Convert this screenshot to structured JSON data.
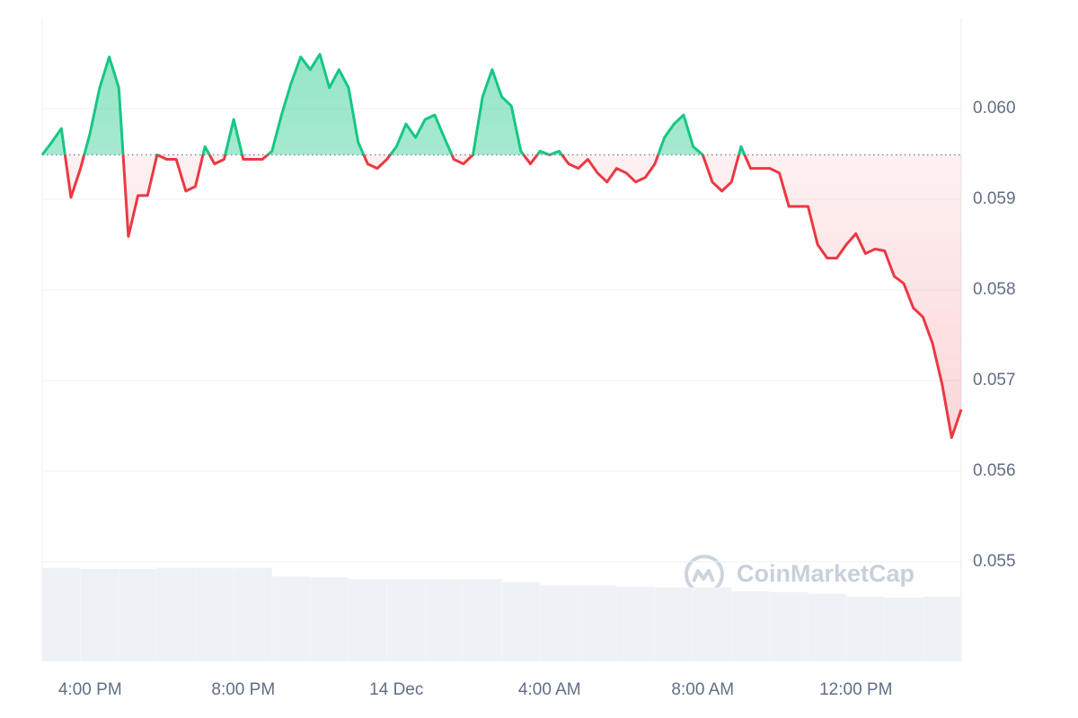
{
  "chart_data": {
    "type": "line",
    "categories": [
      null,
      null,
      null,
      null,
      null,
      "4:00 PM",
      null,
      null,
      null,
      null,
      null,
      null,
      null,
      null,
      null,
      null,
      null,
      null,
      null,
      null,
      null,
      "8:00 PM",
      null,
      null,
      null,
      null,
      null,
      null,
      null,
      null,
      null,
      null,
      null,
      null,
      null,
      null,
      null,
      "14 Dec",
      null,
      null,
      null,
      null,
      null,
      null,
      null,
      null,
      null,
      null,
      null,
      null,
      null,
      null,
      null,
      "4:00 AM",
      null,
      null,
      null,
      null,
      null,
      null,
      null,
      null,
      null,
      null,
      null,
      null,
      null,
      null,
      null,
      "8:00 AM",
      null,
      null,
      null,
      null,
      null,
      null,
      null,
      null,
      null,
      null,
      null,
      null,
      null,
      null,
      null,
      "12:00 PM",
      null,
      null,
      null,
      null,
      null,
      null,
      null,
      null,
      null,
      null,
      null
    ],
    "values": [
      0.05949,
      0.05963,
      0.05978,
      0.05902,
      0.05934,
      0.05973,
      0.06023,
      0.06057,
      0.06023,
      0.05859,
      0.05904,
      0.05904,
      0.05949,
      0.05944,
      0.05944,
      0.05909,
      0.05914,
      0.05958,
      0.05939,
      0.05944,
      0.05988,
      0.05944,
      0.05944,
      0.05944,
      0.05953,
      0.05993,
      0.06028,
      0.06057,
      0.06043,
      0.0606,
      0.06023,
      0.06043,
      0.06023,
      0.05963,
      0.05939,
      0.05934,
      0.05944,
      0.05958,
      0.05983,
      0.05968,
      0.05988,
      0.05993,
      0.05968,
      0.05944,
      0.05939,
      0.05949,
      0.06013,
      0.06043,
      0.06013,
      0.06003,
      0.05953,
      0.05939,
      0.05953,
      0.05949,
      0.05953,
      0.05939,
      0.05934,
      0.05944,
      0.05929,
      0.05919,
      0.05934,
      0.05929,
      0.05919,
      0.05924,
      0.05939,
      0.05968,
      0.05983,
      0.05993,
      0.05958,
      0.05949,
      0.05919,
      0.05909,
      0.05919,
      0.05958,
      0.05934,
      0.05934,
      0.05934,
      0.05929,
      0.05892,
      0.05892,
      0.05892,
      0.0585,
      0.05835,
      0.05835,
      0.0585,
      0.05862,
      0.0584,
      0.05845,
      0.05843,
      0.05815,
      0.05807,
      0.0578,
      0.0577,
      0.05741,
      0.05696,
      0.05637,
      0.05668
    ],
    "baseline": 0.05949,
    "up_color": "#16c784",
    "down_color": "#ea3943",
    "ylim": [
      0.0539,
      0.061
    ],
    "yticks": [
      0.055,
      0.056,
      0.057,
      0.058,
      0.059,
      {
        "value": 0.06,
        "label": "0.060"
      }
    ],
    "grid": true,
    "volume": {
      "values": [
        101,
        100,
        100,
        101,
        101,
        101,
        92,
        91,
        89,
        89,
        89,
        89,
        86,
        82,
        82,
        81,
        80,
        80,
        76,
        75,
        73,
        70,
        69,
        70
      ],
      "vlim": [
        0,
        101
      ],
      "color": "#eef1f5"
    },
    "watermark": "CoinMarketCap"
  }
}
